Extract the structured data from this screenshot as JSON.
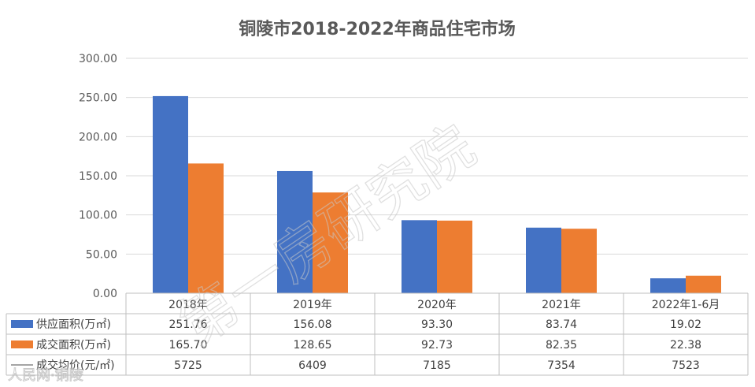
{
  "chart_data": {
    "type": "bar",
    "title": "铜陵市2018-2022年商品住宅市场",
    "categories": [
      "2018年",
      "2019年",
      "2020年",
      "2021年",
      "2022年1-6月"
    ],
    "ylim": [
      0,
      300
    ],
    "yticks": [
      "0.00",
      "50.00",
      "100.00",
      "150.00",
      "200.00",
      "250.00",
      "300.00"
    ],
    "grid": true,
    "series": [
      {
        "name": "供应面积(万㎡)",
        "color": "#4472c4",
        "values": [
          251.76,
          156.08,
          93.3,
          83.74,
          19.02
        ],
        "labels": [
          "251.76",
          "156.08",
          "93.30",
          "83.74",
          "19.02"
        ]
      },
      {
        "name": "成交面积(万㎡)",
        "color": "#ed7d31",
        "values": [
          165.7,
          128.65,
          92.73,
          82.35,
          22.38
        ],
        "labels": [
          "165.70",
          "128.65",
          "92.73",
          "82.35",
          "22.38"
        ]
      }
    ],
    "table_extra": {
      "name": "成交均价(元/㎡)",
      "color": "#a5a5a5",
      "values": [
        "5725",
        "6409",
        "7185",
        "7354",
        "7523"
      ]
    }
  },
  "watermark": "第一房研究院",
  "source_mark": "人民网·铜陵"
}
